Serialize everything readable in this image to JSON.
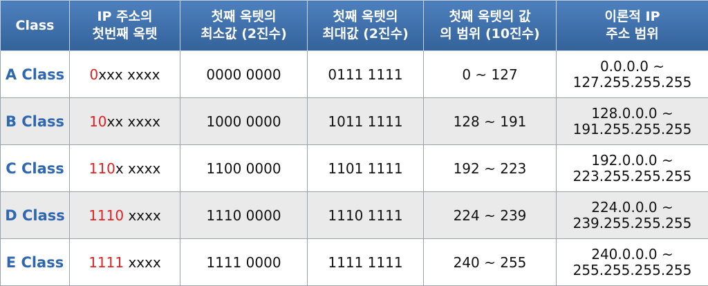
{
  "table": {
    "headers": [
      {
        "line1": "Class",
        "line2": ""
      },
      {
        "line1": "IP 주소의",
        "line2": "첫번째 옥텟"
      },
      {
        "line1": "첫째 옥텟의",
        "line2": "최소값 (2진수)"
      },
      {
        "line1": "첫째 옥텟의",
        "line2": "최대값 (2진수)"
      },
      {
        "line1": "첫째 옥텟의 값",
        "line2": "의 범위 (10진수)"
      },
      {
        "line1": "이론적 IP",
        "line2": "주소 범위"
      }
    ],
    "rows": [
      {
        "class_name": "A Class",
        "first_octet_red": "0",
        "first_octet_rest": "xxx xxxx",
        "min_bin": "0000 0000",
        "max_bin": "0111 1111",
        "dec_range": "0 ~ 127",
        "ip_range_start": "0.0.0.0 ~",
        "ip_range_end": "127.255.255.255"
      },
      {
        "class_name": "B Class",
        "first_octet_red": "10",
        "first_octet_rest": "xx xxxx",
        "min_bin": "1000 0000",
        "max_bin": "1011 1111",
        "dec_range": "128 ~ 191",
        "ip_range_start": "128.0.0.0 ~",
        "ip_range_end": "191.255.255.255"
      },
      {
        "class_name": "C Class",
        "first_octet_red": "110",
        "first_octet_rest": "x xxxx",
        "min_bin": "1100 0000",
        "max_bin": "1101 1111",
        "dec_range": "192 ~ 223",
        "ip_range_start": "192.0.0.0 ~",
        "ip_range_end": "223.255.255.255"
      },
      {
        "class_name": "D Class",
        "first_octet_red": "1110",
        "first_octet_rest": " xxxx",
        "min_bin": "1110 0000",
        "max_bin": "1110 1111",
        "dec_range": "224 ~ 239",
        "ip_range_start": "224.0.0.0 ~",
        "ip_range_end": "239.255.255.255"
      },
      {
        "class_name": "E Class",
        "first_octet_red": "1111",
        "first_octet_rest": " xxxx",
        "min_bin": "1111 0000",
        "max_bin": "1111 1111",
        "dec_range": "240 ~ 255",
        "ip_range_start": "240.0.0.0 ~",
        "ip_range_end": "255.255.255.255"
      }
    ]
  },
  "colors": {
    "header_bg": "#3f6fa8",
    "header_text": "#ffffff",
    "class_text": "#2f66b0",
    "prefix_highlight": "#e02020",
    "alt_row_bg": "#eaeaea"
  }
}
